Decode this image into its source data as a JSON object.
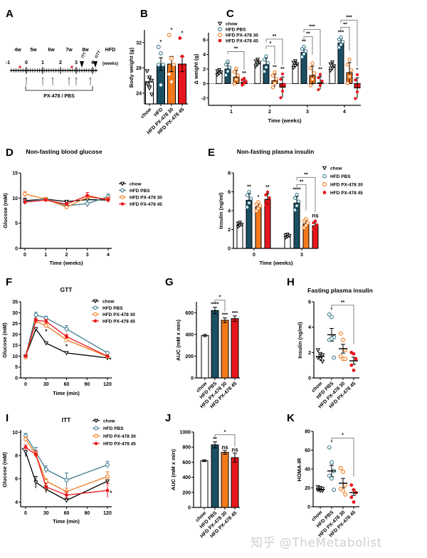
{
  "panel_letters": [
    "A",
    "B",
    "C",
    "D",
    "E",
    "F",
    "G",
    "H",
    "I",
    "J",
    "K"
  ],
  "colors": {
    "chow": "#ffffff",
    "hfd_pbs": "#1b4f63",
    "px478_30": "#f27a1c",
    "px478_45": "#e8161c",
    "line_pbs": "#3f7d8f"
  },
  "watermark": "知乎 @TheMetabolist",
  "timeline": {
    "ages": [
      "4w",
      "5w",
      "6w",
      "7w",
      "8w",
      "HFD"
    ],
    "weeks": [
      "-1",
      "0",
      "1",
      "2",
      "3",
      "4"
    ],
    "unit": "(weeks)",
    "itt": "ITT",
    "gtt": "GTT",
    "treatment": "PX-478 / PBS"
  },
  "chart_data": [
    {
      "panel": "B",
      "type": "bar",
      "ylabel": "Body weight (g)",
      "ylim": [
        22.3,
        34
      ],
      "yticks": [
        24,
        28,
        32
      ],
      "categories": [
        "chow",
        "HFD",
        "HFD PX-478 30",
        "HFD PX-478 45"
      ],
      "values": [
        25.8,
        28.6,
        28.6,
        28.6
      ],
      "sem": [
        0.6,
        1.0,
        1.2,
        1.2
      ],
      "points": [
        [
          27.5,
          26.5,
          26,
          25.5,
          24.8,
          23.8
        ],
        [
          31.3,
          30.3,
          28.5,
          28.5,
          25.3
        ],
        [
          33.2,
          29.5,
          28.5,
          27,
          25.8
        ],
        [
          32.7,
          29.8,
          28,
          26.2,
          26.2
        ]
      ],
      "stars": [
        {
          "cat": 1,
          "text": "*"
        },
        {
          "cat": 2,
          "text": "*"
        },
        {
          "cat": 3,
          "text": "*"
        }
      ],
      "brackets": []
    },
    {
      "panel": "C",
      "type": "grouped_bar",
      "xlabel": "Time (weeks)",
      "ylabel": "Δ weight (g)",
      "ylim": [
        -3,
        7
      ],
      "yticks": [
        -2,
        0,
        2,
        4,
        6
      ],
      "categories": [
        "1",
        "2",
        "3",
        "4"
      ],
      "series": [
        {
          "name": "chow",
          "values": [
            1.5,
            2.8,
            2.6,
            2.3
          ],
          "sem": [
            0.3,
            0.4,
            0.4,
            0.5
          ]
        },
        {
          "name": "HFD PBS",
          "values": [
            2.0,
            2.6,
            4.3,
            5.6
          ],
          "sem": [
            0.8,
            0.9,
            0.6,
            0.6
          ]
        },
        {
          "name": "HFD PX-478 30",
          "values": [
            0.9,
            0.4,
            1.1,
            1.5
          ],
          "sem": [
            0.9,
            0.9,
            1.3,
            1.4
          ]
        },
        {
          "name": "HFD PX-478 45",
          "values": [
            0.2,
            -0.5,
            0.1,
            -0.6
          ],
          "sem": [
            0.4,
            1.4,
            0.9,
            1.4
          ]
        }
      ],
      "stars": [
        {
          "group": 0,
          "series": 3,
          "text": "**"
        },
        {
          "group": 1,
          "series": 2,
          "text": "**"
        },
        {
          "group": 1,
          "series": 3,
          "text": "**"
        },
        {
          "group": 2,
          "series": 1,
          "text": "**"
        },
        {
          "group": 2,
          "series": 3,
          "text": "**"
        },
        {
          "group": 3,
          "series": 1,
          "text": "***"
        },
        {
          "group": 3,
          "series": 3,
          "text": "*"
        }
      ],
      "brackets": [
        {
          "group": 0,
          "from": 1,
          "to": 3,
          "text": "**",
          "level": 0
        },
        {
          "group": 1,
          "from": 1,
          "to": 2,
          "text": "*",
          "level": 0
        },
        {
          "group": 1,
          "from": 1,
          "to": 3,
          "text": "**",
          "level": 1
        },
        {
          "group": 2,
          "from": 1,
          "to": 2,
          "text": "**",
          "level": 0
        },
        {
          "group": 2,
          "from": 1,
          "to": 3,
          "text": "***",
          "level": 1
        },
        {
          "group": 3,
          "from": 1,
          "to": 2,
          "text": "**",
          "level": 0
        },
        {
          "group": 3,
          "from": 1,
          "to": 3,
          "text": "***",
          "level": 1
        }
      ],
      "legend": "top-left"
    },
    {
      "panel": "D",
      "type": "line",
      "title": "Non-fasting blood glucose",
      "xlabel": "Time (weeks)",
      "ylabel": "Glucose (mM)",
      "xlim": [
        0,
        4
      ],
      "xticks": [
        0,
        1,
        2,
        3,
        4
      ],
      "ylim": [
        0,
        15
      ],
      "yticks": [
        0,
        5,
        10,
        15
      ],
      "x": [
        0,
        1,
        2,
        3,
        4
      ],
      "series": [
        {
          "name": "chow",
          "values": [
            9.5,
            9.8,
            9.3,
            9.7,
            9.6
          ],
          "sem": [
            0.5,
            0.3,
            0.2,
            0.3,
            0.3
          ]
        },
        {
          "name": "HFD PBS",
          "values": [
            9.3,
            9.8,
            8.5,
            8.9,
            10.3
          ],
          "sem": [
            0.5,
            0.3,
            0.3,
            0.7,
            0.5
          ]
        },
        {
          "name": "HFD PX-478 30",
          "values": [
            10.8,
            9.8,
            8.2,
            10.2,
            9.8
          ],
          "sem": [
            0.5,
            0.3,
            0.3,
            0.4,
            0.4
          ]
        },
        {
          "name": "HFD PX-478 45",
          "values": [
            9.2,
            9.6,
            8.8,
            10.5,
            9.6
          ],
          "sem": [
            0.5,
            0.3,
            0.3,
            0.6,
            0.4
          ]
        }
      ],
      "stars": [],
      "legend": "right"
    },
    {
      "panel": "E",
      "type": "grouped_bar",
      "title": "Non-fasting plasma insulin",
      "xlabel": "Time (weeks)",
      "ylabel": "Insulin (ng/ml)",
      "ylim": [
        0,
        8
      ],
      "yticks": [
        0,
        2,
        4,
        6,
        8
      ],
      "categories": [
        "0",
        "3"
      ],
      "series": [
        {
          "name": "chow",
          "values": [
            2.5,
            1.3
          ],
          "sem": [
            0.2,
            0.15
          ]
        },
        {
          "name": "HFD PBS",
          "values": [
            5.1,
            4.8
          ],
          "sem": [
            0.7,
            0.7
          ]
        },
        {
          "name": "HFD PX-478 30",
          "values": [
            4.4,
            2.6
          ],
          "sem": [
            0.4,
            0.4
          ]
        },
        {
          "name": "HFD PX-478 45",
          "values": [
            5.2,
            2.4
          ],
          "sem": [
            0.6,
            0.4
          ]
        }
      ],
      "stars": [
        {
          "group": 0,
          "series": 1,
          "text": "**"
        },
        {
          "group": 0,
          "series": 2,
          "text": "*"
        },
        {
          "group": 0,
          "series": 3,
          "text": "**"
        },
        {
          "group": 1,
          "series": 1,
          "text": "****"
        },
        {
          "group": 1,
          "series": 3,
          "text": "ns"
        }
      ],
      "brackets": [
        {
          "group": 1,
          "from": 1,
          "to": 2,
          "text": "**",
          "level": 0
        },
        {
          "group": 1,
          "from": 1,
          "to": 3,
          "text": "**",
          "level": 1
        }
      ],
      "legend": "right"
    },
    {
      "panel": "F",
      "type": "line",
      "title": "GTT",
      "xlabel": "Time (min)",
      "ylabel": "Glucose (mM)",
      "xlim": [
        0,
        120
      ],
      "xticks": [
        0,
        30,
        60,
        90,
        120
      ],
      "ylim": [
        0,
        35
      ],
      "yticks": [
        0,
        5,
        10,
        15,
        20,
        25,
        30,
        35
      ],
      "x": [
        0,
        15,
        30,
        60,
        120
      ],
      "series": [
        {
          "name": "chow",
          "values": [
            10,
            22.5,
            16,
            11.5,
            9.2
          ],
          "sem": [
            0.4,
            0.6,
            0.5,
            0.4,
            0.3
          ]
        },
        {
          "name": "HFD PBS",
          "values": [
            10,
            29,
            27.5,
            22.5,
            11.5
          ],
          "sem": [
            0.4,
            1.2,
            0.9,
            1.5,
            0.5
          ]
        },
        {
          "name": "HFD PX-478 30",
          "values": [
            9.5,
            26,
            24,
            17.5,
            9.8
          ],
          "sem": [
            0.4,
            1,
            1,
            1,
            0.4
          ]
        },
        {
          "name": "HFD PX-478 45",
          "values": [
            10,
            26.5,
            26,
            19,
            10
          ],
          "sem": [
            0.4,
            1,
            1,
            1,
            0.4
          ]
        }
      ],
      "stars": [
        {
          "x": 30,
          "y": 21.5,
          "text": "*"
        },
        {
          "x": 60,
          "y": 14.5,
          "text": "*"
        },
        {
          "x": 124,
          "y": 8.5,
          "text": "*"
        }
      ],
      "legend": "top-right"
    },
    {
      "panel": "G",
      "type": "bar",
      "ylabel": "AUC (mM x min)",
      "ylim": [
        0,
        700
      ],
      "yticks": [
        0,
        200,
        400,
        600
      ],
      "categories": [
        "chow",
        "HFD PBS",
        "HFD PX-478 30",
        "HFD PX-478 45"
      ],
      "values": [
        390,
        620,
        530,
        545
      ],
      "sem": [
        10,
        30,
        22,
        25
      ],
      "stars": [
        {
          "cat": 1,
          "text": "****"
        },
        {
          "cat": 2,
          "text": "***"
        },
        {
          "cat": 3,
          "text": "***"
        }
      ],
      "brackets": [
        {
          "from": 1,
          "to": 2,
          "text": "*",
          "level": 0
        }
      ]
    },
    {
      "panel": "H",
      "type": "scatter",
      "title": "Fasting plasma insulin",
      "ylabel": "Insulin (ng/ml)",
      "ylim": [
        0,
        6
      ],
      "yticks": [
        0,
        2,
        4,
        6
      ],
      "categories": [
        "chow",
        "HFD PBS",
        "HFD PX-478 30",
        "HFD PX-478 45"
      ],
      "values": [
        1.7,
        3.4,
        2.3,
        1.35
      ],
      "sem": [
        0.15,
        0.5,
        0.35,
        0.28
      ],
      "points": [
        [
          2.2,
          1.9,
          1.8,
          1.6,
          1.5,
          1.3
        ],
        [
          5.0,
          4.8,
          3.2,
          3.0,
          3.1,
          1.6
        ],
        [
          3.5,
          3.0,
          2.2,
          1.7,
          1.5,
          1.5
        ],
        [
          2.0,
          1.9,
          1.5,
          1.0,
          0.6
        ]
      ],
      "stars": [
        {
          "cat": 1,
          "text": "*"
        }
      ],
      "brackets": [
        {
          "from": 1,
          "to": 3,
          "text": "**",
          "level": 0
        }
      ]
    },
    {
      "panel": "I",
      "type": "line",
      "title": "ITT",
      "xlabel": "Time (min)",
      "ylabel": "Glucose (mM)",
      "xlim": [
        0,
        120
      ],
      "xticks": [
        0,
        30,
        60,
        90,
        120
      ],
      "ylim": [
        3.6,
        10.2
      ],
      "yticks": [
        4,
        6,
        8,
        10
      ],
      "x": [
        0,
        15,
        30,
        60,
        120
      ],
      "series": [
        {
          "name": "chow",
          "values": [
            8.3,
            5.7,
            5.1,
            4.15,
            5.8
          ],
          "sem": [
            0.4,
            0.5,
            0.3,
            0.2,
            0.3
          ]
        },
        {
          "name": "HFD PBS",
          "values": [
            9.7,
            8.3,
            6.8,
            5.9,
            7.2
          ],
          "sem": [
            0.2,
            0.4,
            0.3,
            0.6,
            0.3
          ]
        },
        {
          "name": "HFD PX-478 30",
          "values": [
            9.4,
            8.1,
            5.8,
            4.9,
            6.2
          ],
          "sem": [
            0.2,
            0.3,
            0.2,
            0.3,
            0.4
          ]
        },
        {
          "name": "HFD PX-478 45",
          "values": [
            8.7,
            8.1,
            5.3,
            4.6,
            5.0
          ],
          "sem": [
            0.2,
            0.3,
            0.3,
            0.3,
            0.6
          ]
        }
      ],
      "stars": [
        {
          "x": -4,
          "y": 8.5,
          "text": "*"
        },
        {
          "x": 125,
          "y": 4.8,
          "text": "*"
        }
      ],
      "legend": "top-right"
    },
    {
      "panel": "J",
      "type": "bar",
      "ylabel": "AUC (mM x min)",
      "ylim": [
        0,
        1000
      ],
      "yticks": [
        0,
        200,
        400,
        600,
        800,
        1000
      ],
      "categories": [
        "chow",
        "HFD PBS",
        "HFD PX-478 30",
        "HFD PX-478 45"
      ],
      "values": [
        620,
        830,
        730,
        660
      ],
      "sem": [
        12,
        40,
        25,
        60
      ],
      "stars": [
        {
          "cat": 1,
          "text": "**"
        },
        {
          "cat": 2,
          "text": "ns"
        },
        {
          "cat": 3,
          "text": "ns"
        }
      ],
      "brackets": [
        {
          "from": 1,
          "to": 3,
          "text": "*",
          "level": 0
        }
      ]
    },
    {
      "panel": "K",
      "type": "scatter",
      "ylabel": "HOMA-IR",
      "ylim": [
        0,
        80
      ],
      "yticks": [
        0,
        20,
        40,
        60,
        80
      ],
      "categories": [
        "chow",
        "HFD PBS",
        "HFD PX-478 30",
        "HFD PX-478 45"
      ],
      "values": [
        18,
        38,
        25,
        15
      ],
      "sem": [
        1,
        6,
        5,
        3
      ],
      "points": [
        [
          21,
          20,
          19,
          18,
          17,
          17
        ],
        [
          63,
          47,
          38,
          33,
          30,
          18
        ],
        [
          41,
          37,
          23,
          19,
          17,
          13
        ],
        [
          23,
          18,
          15,
          10,
          5
        ]
      ],
      "stars": [
        {
          "cat": 1,
          "text": "*"
        }
      ],
      "brackets": [
        {
          "from": 1,
          "to": 3,
          "text": "*",
          "level": 0
        }
      ]
    }
  ]
}
